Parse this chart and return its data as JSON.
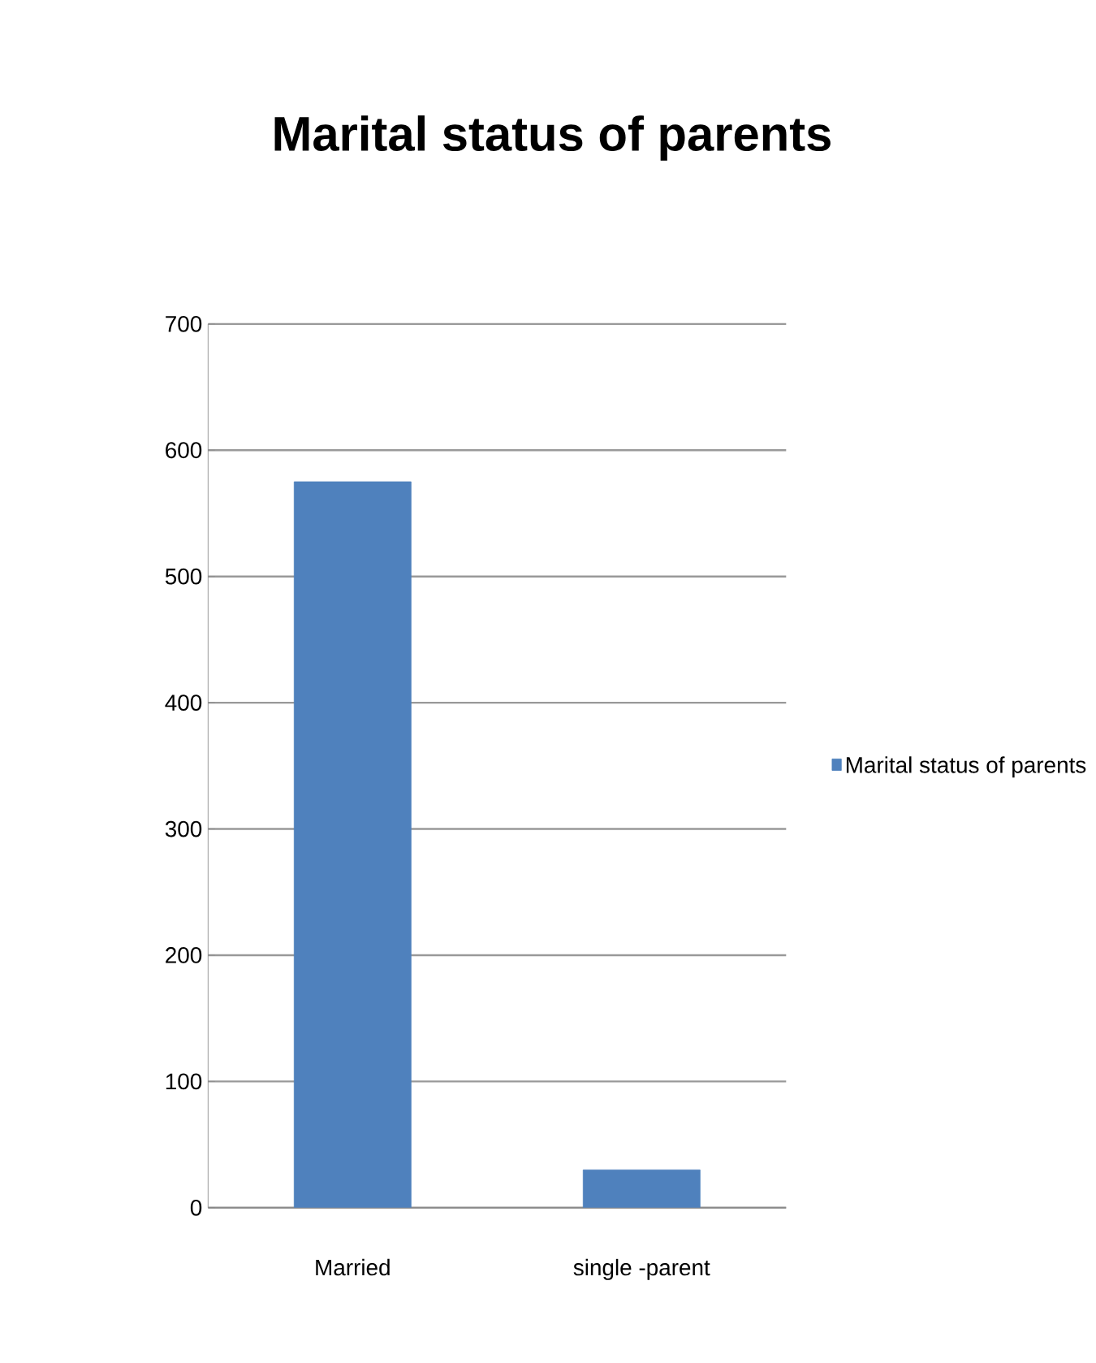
{
  "chart_data": {
    "type": "bar",
    "title": "Marital status of parents",
    "categories": [
      "Married",
      "single -parent"
    ],
    "series": [
      {
        "name": "Marital status of parents",
        "color": "#4f81bd",
        "values": [
          575,
          30
        ]
      }
    ],
    "ylim": [
      0,
      700
    ],
    "yticks": [
      0,
      100,
      200,
      300,
      400,
      500,
      600,
      700
    ],
    "grid": "y",
    "legend": "right"
  }
}
